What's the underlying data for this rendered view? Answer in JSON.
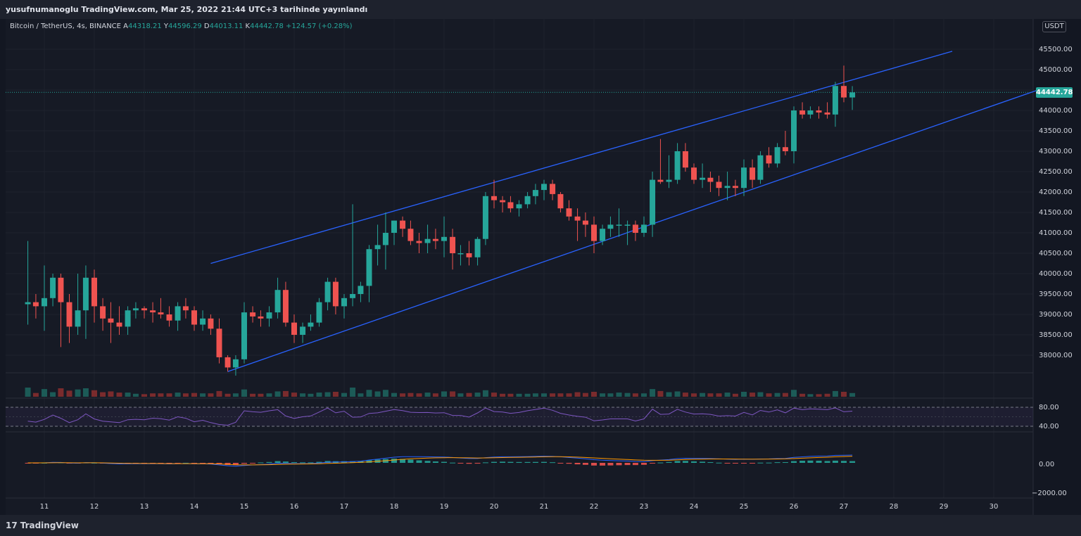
{
  "header": {
    "title": "yusufnumanoglu TradingView.com, Mar 25, 2022 21:44 UTC+3 tarihinde yayınlandı"
  },
  "legend": {
    "symbol": "Bitcoin / TetherUS, 4s, BINANCE",
    "open_label": "A",
    "open": "44318.21",
    "high_label": "Y",
    "high": "44596.29",
    "low_label": "D",
    "low": "44013.11",
    "close_label": "K",
    "close": "44442.78",
    "change": "+124.57 (+0.28%)"
  },
  "price_axis": {
    "unit": "USDT",
    "ticks": [
      "45500.00",
      "45000.00",
      "44000.00",
      "43500.00",
      "43000.00",
      "42500.00",
      "42000.00",
      "41500.00",
      "41000.00",
      "40500.00",
      "40000.00",
      "39500.00",
      "39000.00",
      "38500.00",
      "38000.00"
    ],
    "last_price": "44442.78"
  },
  "rsi_axis": {
    "ticks": [
      "80.00",
      "40.00"
    ]
  },
  "macd_axis": {
    "ticks": [
      "0.00",
      "−2000.00"
    ]
  },
  "time_axis": {
    "ticks": [
      "11",
      "12",
      "13",
      "14",
      "15",
      "16",
      "17",
      "18",
      "19",
      "20",
      "21",
      "22",
      "23",
      "24",
      "25",
      "26",
      "27",
      "28",
      "29",
      "30"
    ]
  },
  "footer": {
    "brand": "TradingView"
  },
  "colors": {
    "up": "#26a69a",
    "down": "#ef5350",
    "channel": "#2962ff",
    "rsi": "#7e57c2",
    "background": "#161a25"
  },
  "chart_data": {
    "type": "candlestick",
    "interval": "4h",
    "xlim": [
      "10.6",
      "31"
    ],
    "ylim": [
      37500,
      46100
    ],
    "candles": [
      {
        "t": 10.67,
        "o": 39250,
        "h": 40800,
        "l": 38750,
        "c": 39300
      },
      {
        "t": 10.83,
        "o": 39300,
        "h": 39500,
        "l": 38900,
        "c": 39200
      },
      {
        "t": 11.0,
        "o": 39200,
        "h": 40200,
        "l": 38600,
        "c": 39400
      },
      {
        "t": 11.17,
        "o": 39400,
        "h": 40000,
        "l": 39200,
        "c": 39900
      },
      {
        "t": 11.33,
        "o": 39900,
        "h": 40000,
        "l": 38200,
        "c": 39300
      },
      {
        "t": 11.5,
        "o": 39300,
        "h": 39500,
        "l": 38300,
        "c": 38700
      },
      {
        "t": 11.67,
        "o": 38700,
        "h": 40000,
        "l": 38500,
        "c": 39100
      },
      {
        "t": 11.83,
        "o": 39100,
        "h": 40200,
        "l": 38400,
        "c": 39900
      },
      {
        "t": 12.0,
        "o": 39900,
        "h": 40100,
        "l": 38800,
        "c": 39200
      },
      {
        "t": 12.17,
        "o": 39200,
        "h": 39400,
        "l": 38600,
        "c": 38900
      },
      {
        "t": 12.33,
        "o": 38900,
        "h": 39300,
        "l": 38300,
        "c": 38800
      },
      {
        "t": 12.5,
        "o": 38800,
        "h": 39200,
        "l": 38500,
        "c": 38700
      },
      {
        "t": 12.67,
        "o": 38700,
        "h": 39200,
        "l": 38500,
        "c": 39100
      },
      {
        "t": 12.83,
        "o": 39100,
        "h": 39300,
        "l": 38900,
        "c": 39150
      },
      {
        "t": 13.0,
        "o": 39150,
        "h": 39200,
        "l": 38900,
        "c": 39100
      },
      {
        "t": 13.17,
        "o": 39100,
        "h": 39300,
        "l": 38800,
        "c": 39050
      },
      {
        "t": 13.33,
        "o": 39050,
        "h": 39400,
        "l": 38900,
        "c": 39000
      },
      {
        "t": 13.5,
        "o": 39000,
        "h": 39200,
        "l": 38700,
        "c": 38850
      },
      {
        "t": 13.67,
        "o": 38850,
        "h": 39300,
        "l": 38600,
        "c": 39200
      },
      {
        "t": 13.83,
        "o": 39200,
        "h": 39400,
        "l": 38900,
        "c": 39100
      },
      {
        "t": 14.0,
        "o": 39100,
        "h": 39200,
        "l": 38600,
        "c": 38750
      },
      {
        "t": 14.17,
        "o": 38750,
        "h": 39100,
        "l": 38600,
        "c": 38900
      },
      {
        "t": 14.33,
        "o": 38900,
        "h": 39000,
        "l": 38500,
        "c": 38650
      },
      {
        "t": 14.5,
        "o": 38650,
        "h": 38900,
        "l": 37800,
        "c": 37950
      },
      {
        "t": 14.67,
        "o": 37950,
        "h": 38000,
        "l": 37600,
        "c": 37700
      },
      {
        "t": 14.83,
        "o": 37700,
        "h": 38000,
        "l": 37500,
        "c": 37900
      },
      {
        "t": 15.0,
        "o": 37900,
        "h": 39300,
        "l": 37800,
        "c": 39050
      },
      {
        "t": 15.17,
        "o": 39050,
        "h": 39200,
        "l": 38800,
        "c": 38950
      },
      {
        "t": 15.33,
        "o": 38950,
        "h": 39100,
        "l": 38700,
        "c": 38900
      },
      {
        "t": 15.5,
        "o": 38900,
        "h": 39200,
        "l": 38700,
        "c": 39050
      },
      {
        "t": 15.67,
        "o": 39050,
        "h": 39900,
        "l": 38900,
        "c": 39600
      },
      {
        "t": 15.83,
        "o": 39600,
        "h": 39800,
        "l": 38700,
        "c": 38800
      },
      {
        "t": 16.0,
        "o": 38800,
        "h": 39000,
        "l": 38300,
        "c": 38500
      },
      {
        "t": 16.17,
        "o": 38500,
        "h": 38800,
        "l": 38300,
        "c": 38700
      },
      {
        "t": 16.33,
        "o": 38700,
        "h": 39000,
        "l": 38600,
        "c": 38800
      },
      {
        "t": 16.5,
        "o": 38800,
        "h": 39400,
        "l": 38700,
        "c": 39300
      },
      {
        "t": 16.67,
        "o": 39300,
        "h": 39900,
        "l": 39100,
        "c": 39800
      },
      {
        "t": 16.83,
        "o": 39800,
        "h": 39900,
        "l": 39000,
        "c": 39200
      },
      {
        "t": 17.0,
        "o": 39200,
        "h": 39500,
        "l": 38900,
        "c": 39400
      },
      {
        "t": 17.17,
        "o": 39400,
        "h": 41700,
        "l": 39200,
        "c": 39500
      },
      {
        "t": 17.33,
        "o": 39500,
        "h": 39800,
        "l": 39300,
        "c": 39700
      },
      {
        "t": 17.5,
        "o": 39700,
        "h": 40700,
        "l": 39300,
        "c": 40600
      },
      {
        "t": 17.67,
        "o": 40600,
        "h": 41200,
        "l": 40200,
        "c": 40700
      },
      {
        "t": 17.83,
        "o": 40700,
        "h": 41500,
        "l": 40100,
        "c": 41000
      },
      {
        "t": 18.0,
        "o": 41000,
        "h": 41300,
        "l": 40700,
        "c": 41300
      },
      {
        "t": 18.17,
        "o": 41300,
        "h": 41400,
        "l": 40900,
        "c": 41100
      },
      {
        "t": 18.33,
        "o": 41100,
        "h": 41300,
        "l": 40700,
        "c": 40800
      },
      {
        "t": 18.5,
        "o": 40800,
        "h": 41000,
        "l": 40500,
        "c": 40750
      },
      {
        "t": 18.67,
        "o": 40750,
        "h": 41200,
        "l": 40500,
        "c": 40850
      },
      {
        "t": 18.83,
        "o": 40850,
        "h": 41100,
        "l": 40600,
        "c": 40800
      },
      {
        "t": 19.0,
        "o": 40800,
        "h": 41400,
        "l": 40400,
        "c": 40900
      },
      {
        "t": 19.17,
        "o": 40900,
        "h": 41100,
        "l": 40100,
        "c": 40500
      },
      {
        "t": 19.33,
        "o": 40500,
        "h": 40700,
        "l": 40200,
        "c": 40500
      },
      {
        "t": 19.5,
        "o": 40500,
        "h": 40800,
        "l": 40200,
        "c": 40400
      },
      {
        "t": 19.67,
        "o": 40400,
        "h": 40900,
        "l": 40200,
        "c": 40850
      },
      {
        "t": 19.83,
        "o": 40850,
        "h": 42000,
        "l": 40700,
        "c": 41900
      },
      {
        "t": 20.0,
        "o": 41900,
        "h": 42300,
        "l": 41600,
        "c": 41800
      },
      {
        "t": 20.17,
        "o": 41800,
        "h": 41900,
        "l": 41500,
        "c": 41750
      },
      {
        "t": 20.33,
        "o": 41750,
        "h": 41900,
        "l": 41500,
        "c": 41600
      },
      {
        "t": 20.5,
        "o": 41600,
        "h": 41800,
        "l": 41400,
        "c": 41700
      },
      {
        "t": 20.67,
        "o": 41700,
        "h": 42000,
        "l": 41600,
        "c": 41900
      },
      {
        "t": 20.83,
        "o": 41900,
        "h": 42200,
        "l": 41700,
        "c": 42050
      },
      {
        "t": 21.0,
        "o": 42050,
        "h": 42300,
        "l": 41800,
        "c": 42200
      },
      {
        "t": 21.17,
        "o": 42200,
        "h": 42300,
        "l": 41800,
        "c": 41950
      },
      {
        "t": 21.33,
        "o": 41950,
        "h": 42000,
        "l": 41500,
        "c": 41600
      },
      {
        "t": 21.5,
        "o": 41600,
        "h": 41800,
        "l": 41300,
        "c": 41400
      },
      {
        "t": 21.67,
        "o": 41400,
        "h": 41600,
        "l": 40800,
        "c": 41300
      },
      {
        "t": 21.83,
        "o": 41300,
        "h": 41500,
        "l": 40900,
        "c": 41200
      },
      {
        "t": 22.0,
        "o": 41200,
        "h": 41400,
        "l": 40500,
        "c": 40800
      },
      {
        "t": 22.17,
        "o": 40800,
        "h": 41200,
        "l": 40700,
        "c": 41100
      },
      {
        "t": 22.33,
        "o": 41100,
        "h": 41400,
        "l": 40900,
        "c": 41200
      },
      {
        "t": 22.5,
        "o": 41200,
        "h": 41600,
        "l": 40900,
        "c": 41200
      },
      {
        "t": 22.67,
        "o": 41200,
        "h": 41300,
        "l": 40700,
        "c": 41200
      },
      {
        "t": 22.83,
        "o": 41200,
        "h": 41300,
        "l": 40800,
        "c": 41000
      },
      {
        "t": 23.0,
        "o": 41000,
        "h": 41400,
        "l": 40900,
        "c": 41200
      },
      {
        "t": 23.17,
        "o": 41200,
        "h": 42500,
        "l": 40900,
        "c": 42300
      },
      {
        "t": 23.33,
        "o": 42300,
        "h": 43300,
        "l": 42200,
        "c": 42250
      },
      {
        "t": 23.5,
        "o": 42250,
        "h": 42900,
        "l": 42100,
        "c": 42300
      },
      {
        "t": 23.67,
        "o": 42300,
        "h": 43200,
        "l": 42200,
        "c": 43000
      },
      {
        "t": 23.83,
        "o": 43000,
        "h": 43200,
        "l": 42500,
        "c": 42600
      },
      {
        "t": 24.0,
        "o": 42600,
        "h": 42700,
        "l": 42200,
        "c": 42300
      },
      {
        "t": 24.17,
        "o": 42300,
        "h": 42700,
        "l": 42100,
        "c": 42350
      },
      {
        "t": 24.33,
        "o": 42350,
        "h": 42500,
        "l": 42000,
        "c": 42250
      },
      {
        "t": 24.5,
        "o": 42250,
        "h": 42400,
        "l": 41900,
        "c": 42100
      },
      {
        "t": 24.67,
        "o": 42100,
        "h": 42500,
        "l": 41800,
        "c": 42150
      },
      {
        "t": 24.83,
        "o": 42150,
        "h": 42300,
        "l": 41900,
        "c": 42100
      },
      {
        "t": 25.0,
        "o": 42100,
        "h": 42800,
        "l": 41900,
        "c": 42600
      },
      {
        "t": 25.17,
        "o": 42600,
        "h": 42800,
        "l": 42100,
        "c": 42300
      },
      {
        "t": 25.33,
        "o": 42300,
        "h": 43000,
        "l": 42200,
        "c": 42900
      },
      {
        "t": 25.5,
        "o": 42900,
        "h": 43100,
        "l": 42600,
        "c": 42700
      },
      {
        "t": 25.67,
        "o": 42700,
        "h": 43200,
        "l": 42600,
        "c": 43100
      },
      {
        "t": 25.83,
        "o": 43100,
        "h": 43500,
        "l": 42900,
        "c": 43000
      },
      {
        "t": 26.0,
        "o": 43000,
        "h": 44100,
        "l": 42700,
        "c": 44000
      },
      {
        "t": 26.17,
        "o": 44000,
        "h": 44200,
        "l": 43800,
        "c": 43900
      },
      {
        "t": 26.33,
        "o": 43900,
        "h": 44100,
        "l": 43800,
        "c": 44000
      },
      {
        "t": 26.5,
        "o": 44000,
        "h": 44100,
        "l": 43800,
        "c": 43950
      },
      {
        "t": 26.67,
        "o": 43950,
        "h": 44200,
        "l": 43800,
        "c": 43900
      },
      {
        "t": 26.83,
        "o": 43900,
        "h": 44700,
        "l": 43600,
        "c": 44600
      },
      {
        "t": 27.0,
        "o": 44600,
        "h": 45100,
        "l": 44200,
        "c": 44318
      },
      {
        "t": 27.17,
        "o": 44318,
        "h": 44596,
        "l": 44013,
        "c": 44443
      }
    ],
    "channel_lines": [
      {
        "name": "upper",
        "x1": 14.33,
        "y1": 40250,
        "x2": 27.17,
        "y2": 44600,
        "x3": 29.17,
        "y3": 45450
      },
      {
        "name": "lower",
        "x1": 14.67,
        "y1": 37600,
        "x2": 31.0,
        "y2": 44550
      }
    ],
    "rsi": {
      "upper_band": 80,
      "lower_band": 40
    },
    "macd": {
      "zero": 0
    }
  }
}
